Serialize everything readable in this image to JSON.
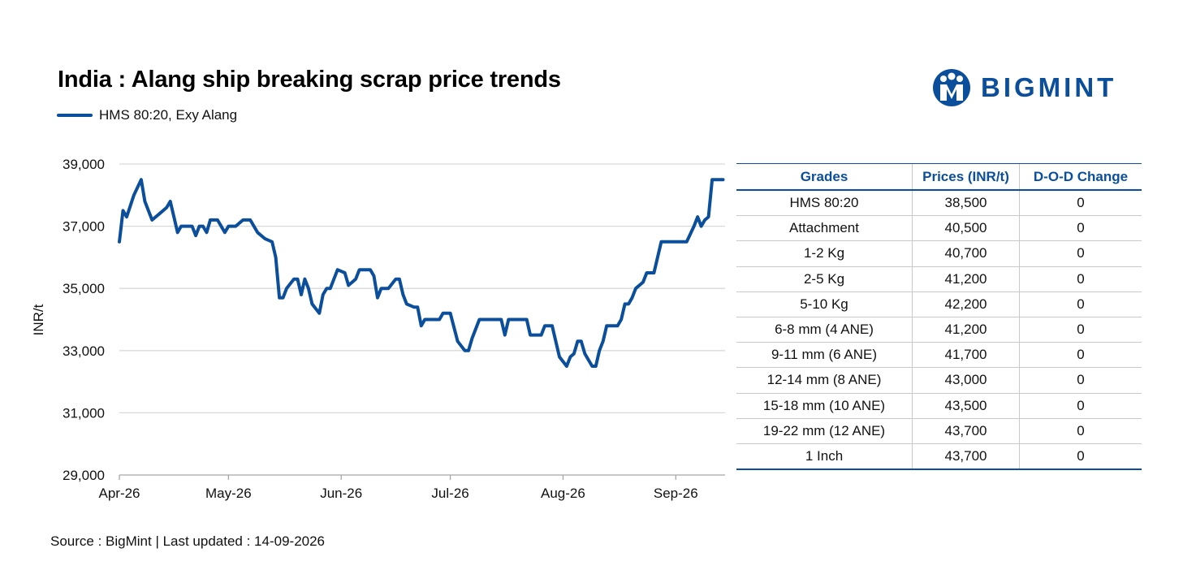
{
  "title": "India : Alang ship breaking scrap price trends",
  "brand": {
    "name": "BIGMINT",
    "color": "#0b4f9c",
    "logo_icon": "bigmint-figure-icon"
  },
  "source": "Source : BigMint | Last updated : 14-09-2026",
  "colors": {
    "line": "#0b4f9c",
    "header_text": "#0b4f9c",
    "grid": "#d9d9d9",
    "table_rule": "#0b4f9c"
  },
  "chart_data": {
    "type": "line",
    "title": "India : Alang ship breaking scrap price trends",
    "ylabel": "INR/t",
    "xlabel": "",
    "ylim": [
      29000,
      39000
    ],
    "yticks": [
      29000,
      31000,
      33000,
      35000,
      37000,
      39000
    ],
    "ytick_labels": [
      "29,000",
      "31,000",
      "33,000",
      "35,000",
      "37,000",
      "39,000"
    ],
    "xlim": [
      "2026-04-01",
      "2026-09-15"
    ],
    "xticks": [
      "2026-04-01",
      "2026-05-01",
      "2026-06-01",
      "2026-07-01",
      "2026-08-01",
      "2026-09-01"
    ],
    "xtick_labels": [
      "Apr-26",
      "May-26",
      "Jun-26",
      "Jul-26",
      "Aug-26",
      "Sep-26"
    ],
    "grid": true,
    "legend_position": "top-left",
    "series": [
      {
        "name": "HMS 80:20, Exy Alang",
        "color": "#0b4f9c",
        "points": [
          [
            "2026-04-01",
            36500
          ],
          [
            "2026-04-02",
            37500
          ],
          [
            "2026-04-03",
            37300
          ],
          [
            "2026-04-05",
            38000
          ],
          [
            "2026-04-07",
            38500
          ],
          [
            "2026-04-08",
            37800
          ],
          [
            "2026-04-10",
            37200
          ],
          [
            "2026-04-12",
            37400
          ],
          [
            "2026-04-14",
            37600
          ],
          [
            "2026-04-15",
            37800
          ],
          [
            "2026-04-16",
            37300
          ],
          [
            "2026-04-17",
            36800
          ],
          [
            "2026-04-18",
            37000
          ],
          [
            "2026-04-21",
            37000
          ],
          [
            "2026-04-22",
            36700
          ],
          [
            "2026-04-23",
            37000
          ],
          [
            "2026-04-24",
            37000
          ],
          [
            "2026-04-25",
            36800
          ],
          [
            "2026-04-26",
            37200
          ],
          [
            "2026-04-28",
            37200
          ],
          [
            "2026-04-30",
            36800
          ],
          [
            "2026-05-01",
            37000
          ],
          [
            "2026-05-03",
            37000
          ],
          [
            "2026-05-05",
            37200
          ],
          [
            "2026-05-07",
            37200
          ],
          [
            "2026-05-09",
            36800
          ],
          [
            "2026-05-11",
            36600
          ],
          [
            "2026-05-13",
            36500
          ],
          [
            "2026-05-14",
            36000
          ],
          [
            "2026-05-15",
            34700
          ],
          [
            "2026-05-16",
            34700
          ],
          [
            "2026-05-17",
            35000
          ],
          [
            "2026-05-19",
            35300
          ],
          [
            "2026-05-20",
            35300
          ],
          [
            "2026-05-21",
            34800
          ],
          [
            "2026-05-22",
            35300
          ],
          [
            "2026-05-23",
            35000
          ],
          [
            "2026-05-24",
            34500
          ],
          [
            "2026-05-26",
            34200
          ],
          [
            "2026-05-27",
            34800
          ],
          [
            "2026-05-28",
            35000
          ],
          [
            "2026-05-29",
            35000
          ],
          [
            "2026-05-31",
            35600
          ],
          [
            "2026-06-02",
            35500
          ],
          [
            "2026-06-03",
            35100
          ],
          [
            "2026-06-05",
            35300
          ],
          [
            "2026-06-06",
            35600
          ],
          [
            "2026-06-09",
            35600
          ],
          [
            "2026-06-10",
            35400
          ],
          [
            "2026-06-11",
            34700
          ],
          [
            "2026-06-12",
            35000
          ],
          [
            "2026-06-14",
            35000
          ],
          [
            "2026-06-16",
            35300
          ],
          [
            "2026-06-17",
            35300
          ],
          [
            "2026-06-18",
            34800
          ],
          [
            "2026-06-19",
            34500
          ],
          [
            "2026-06-21",
            34400
          ],
          [
            "2026-06-22",
            34400
          ],
          [
            "2026-06-23",
            33800
          ],
          [
            "2026-06-24",
            34000
          ],
          [
            "2026-06-28",
            34000
          ],
          [
            "2026-06-29",
            34200
          ],
          [
            "2026-07-01",
            34200
          ],
          [
            "2026-07-03",
            33300
          ],
          [
            "2026-07-05",
            33000
          ],
          [
            "2026-07-06",
            33000
          ],
          [
            "2026-07-07",
            33400
          ],
          [
            "2026-07-09",
            34000
          ],
          [
            "2026-07-15",
            34000
          ],
          [
            "2026-07-16",
            33500
          ],
          [
            "2026-07-17",
            34000
          ],
          [
            "2026-07-22",
            34000
          ],
          [
            "2026-07-23",
            33500
          ],
          [
            "2026-07-26",
            33500
          ],
          [
            "2026-07-27",
            33800
          ],
          [
            "2026-07-29",
            33800
          ],
          [
            "2026-07-31",
            32800
          ],
          [
            "2026-08-02",
            32500
          ],
          [
            "2026-08-03",
            32800
          ],
          [
            "2026-08-04",
            32900
          ],
          [
            "2026-08-05",
            33300
          ],
          [
            "2026-08-06",
            33300
          ],
          [
            "2026-08-07",
            32900
          ],
          [
            "2026-08-09",
            32500
          ],
          [
            "2026-08-10",
            32500
          ],
          [
            "2026-08-11",
            33000
          ],
          [
            "2026-08-12",
            33300
          ],
          [
            "2026-08-13",
            33800
          ],
          [
            "2026-08-16",
            33800
          ],
          [
            "2026-08-17",
            34000
          ],
          [
            "2026-08-18",
            34500
          ],
          [
            "2026-08-19",
            34500
          ],
          [
            "2026-08-20",
            34700
          ],
          [
            "2026-08-21",
            35000
          ],
          [
            "2026-08-23",
            35200
          ],
          [
            "2026-08-24",
            35500
          ],
          [
            "2026-08-26",
            35500
          ],
          [
            "2026-08-28",
            36500
          ],
          [
            "2026-09-04",
            36500
          ],
          [
            "2026-09-06",
            37000
          ],
          [
            "2026-09-07",
            37300
          ],
          [
            "2026-09-08",
            37000
          ],
          [
            "2026-09-09",
            37200
          ],
          [
            "2026-09-10",
            37300
          ],
          [
            "2026-09-11",
            38500
          ],
          [
            "2026-09-14",
            38500
          ]
        ]
      }
    ]
  },
  "table": {
    "headers": [
      "Grades",
      "Prices (INR/t)",
      "D-O-D Change"
    ],
    "rows": [
      [
        "HMS 80:20",
        "38,500",
        "0"
      ],
      [
        "Attachment",
        "40,500",
        "0"
      ],
      [
        "1-2 Kg",
        "40,700",
        "0"
      ],
      [
        "2-5 Kg",
        "41,200",
        "0"
      ],
      [
        "5-10 Kg",
        "42,200",
        "0"
      ],
      [
        "6-8 mm (4 ANE)",
        "41,200",
        "0"
      ],
      [
        "9-11 mm (6 ANE)",
        "41,700",
        "0"
      ],
      [
        "12-14 mm (8 ANE)",
        "43,000",
        "0"
      ],
      [
        "15-18 mm (10 ANE)",
        "43,500",
        "0"
      ],
      [
        "19-22 mm (12 ANE)",
        "43,700",
        "0"
      ],
      [
        "1 Inch",
        "43,700",
        "0"
      ]
    ]
  }
}
